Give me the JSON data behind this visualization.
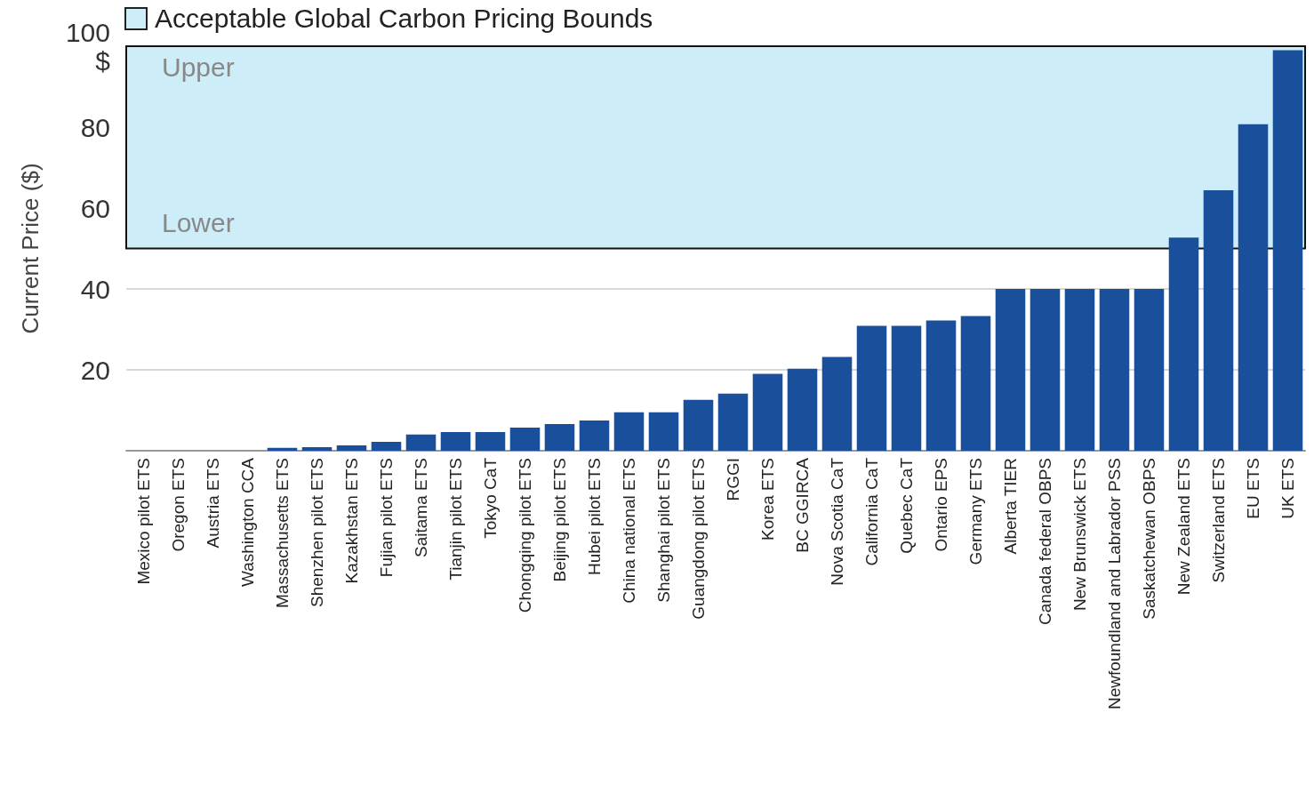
{
  "chart_data": {
    "type": "bar",
    "ylabel": "Current Price ($)",
    "categories": [
      "Mexico pilot ETS",
      "Oregon ETS",
      "Austria ETS",
      "Washington CCA",
      "Massachusetts ETS",
      "Shenzhen pilot ETS",
      "Kazakhstan ETS",
      "Fujian pilot ETS",
      "Saitama ETS",
      "Tianjin pilot ETS",
      "Tokyo CaT",
      "Chongqing pilot ETS",
      "Beijing pilot ETS",
      "Hubei pilot ETS",
      "China national ETS",
      "Shanghai pilot ETS",
      "Guangdong pilot ETS",
      "RGGI",
      "Korea ETS",
      "BC GGIRCA",
      "Nova Scotia CaT",
      "California CaT",
      "Quebec CaT",
      "Ontario EPS",
      "Germany ETS",
      "Alberta TIER",
      "Canada federal OBPS",
      "New Brunswick ETS",
      "Newfoundland and Labrador PSS",
      "Saskatchewan OBPS",
      "New Zealand ETS",
      "Switzerland ETS",
      "EU ETS",
      "UK ETS"
    ],
    "values": [
      0,
      0,
      0,
      0,
      0.7,
      0.9,
      1.3,
      2.2,
      4,
      4.6,
      4.6,
      5.7,
      6.6,
      7.5,
      9.5,
      9.5,
      12.6,
      14.1,
      19,
      20.3,
      23.2,
      30.9,
      30.9,
      32.2,
      33.3,
      40,
      40,
      40,
      40,
      40,
      52.7,
      64.4,
      80.7,
      99
    ],
    "color": "#1a4f9c",
    "ylim": [
      0,
      100
    ],
    "yticks": [
      {
        "value": 0,
        "label": null
      },
      20,
      40,
      60,
      80,
      {
        "value": 100,
        "label": "100\n$"
      }
    ],
    "grid": "y",
    "legend": "top left",
    "bands": [
      {
        "axis": "y",
        "from": 50,
        "to": 100,
        "label": "Acceptable Global Carbon Pricing Bounds",
        "color": "#cdeef8"
      }
    ],
    "annotations": [
      {
        "text": "Upper",
        "y": 100
      },
      {
        "text": "Lower",
        "y": 50
      }
    ]
  }
}
